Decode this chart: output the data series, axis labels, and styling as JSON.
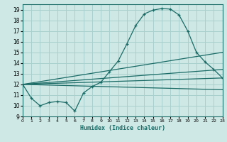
{
  "xlabel": "Humidex (Indice chaleur)",
  "xlim": [
    0,
    23
  ],
  "ylim": [
    9,
    19.5
  ],
  "xticks": [
    0,
    1,
    2,
    3,
    4,
    5,
    6,
    7,
    8,
    9,
    10,
    11,
    12,
    13,
    14,
    15,
    16,
    17,
    18,
    19,
    20,
    21,
    22,
    23
  ],
  "yticks": [
    9,
    10,
    11,
    12,
    13,
    14,
    15,
    16,
    17,
    18,
    19
  ],
  "background_color": "#cde8e5",
  "grid_color": "#a8d0cc",
  "line_color": "#1a6b66",
  "main_x": [
    0,
    1,
    2,
    3,
    4,
    5,
    6,
    7,
    8,
    9,
    10,
    11,
    12,
    13,
    14,
    15,
    16,
    17,
    18,
    19,
    20,
    21,
    22,
    23
  ],
  "main_y": [
    12.0,
    10.7,
    10.0,
    10.3,
    10.4,
    10.3,
    9.5,
    11.2,
    11.8,
    12.2,
    13.2,
    14.2,
    15.8,
    17.5,
    18.6,
    18.95,
    19.1,
    19.05,
    18.5,
    17.0,
    15.0,
    14.1,
    13.4,
    12.6
  ],
  "fan_lines": [
    {
      "x": [
        0,
        23
      ],
      "y": [
        12.0,
        15.0
      ]
    },
    {
      "x": [
        0,
        23
      ],
      "y": [
        12.0,
        13.4
      ]
    },
    {
      "x": [
        0,
        23
      ],
      "y": [
        12.0,
        12.6
      ]
    },
    {
      "x": [
        0,
        23
      ],
      "y": [
        12.0,
        11.5
      ]
    }
  ]
}
